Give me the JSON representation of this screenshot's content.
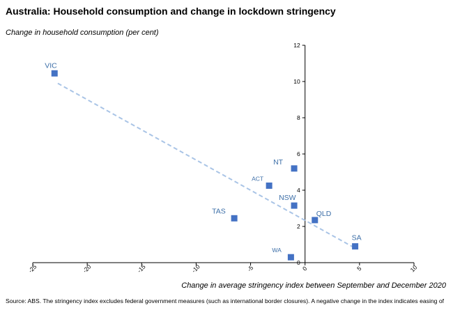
{
  "chart_data": {
    "type": "scatter",
    "title": "Australia: Household consumption and change in lockdown stringency",
    "ylabel": "Change in household consumption (per cent)",
    "xlabel": "Change in average stringency index between September and December 2020",
    "source": "Source: ABS.  The stringency index excludes federal government measures (such as international border closures).   A negative change in the index indicates easing of",
    "xlim": [
      -25,
      10
    ],
    "ylim": [
      0,
      12
    ],
    "x_ticks": [
      "-25",
      "-20",
      "-15",
      "-10",
      "-5",
      "0",
      "5",
      "10"
    ],
    "y_ticks": [
      "0",
      "2",
      "4",
      "6",
      "8",
      "10",
      "12"
    ],
    "grid": false,
    "marker_color": "#4472c4",
    "trendline_color": "#a9c4e6",
    "points": [
      {
        "label": "VIC",
        "x": -23,
        "y": 10.45
      },
      {
        "label": "NT",
        "x": -1,
        "y": 5.2
      },
      {
        "label": "ACT",
        "x": -3.3,
        "y": 4.25
      },
      {
        "label": "NSW",
        "x": -1,
        "y": 3.15
      },
      {
        "label": "TAS",
        "x": -6.5,
        "y": 2.45
      },
      {
        "label": "QLD",
        "x": 0.9,
        "y": 2.35
      },
      {
        "label": "SA",
        "x": 4.6,
        "y": 0.9
      },
      {
        "label": "WA",
        "x": -1.3,
        "y": 0.3
      }
    ],
    "trendline": {
      "x": [
        -22.7,
        4.6
      ],
      "y": [
        9.9,
        0.8
      ]
    }
  }
}
